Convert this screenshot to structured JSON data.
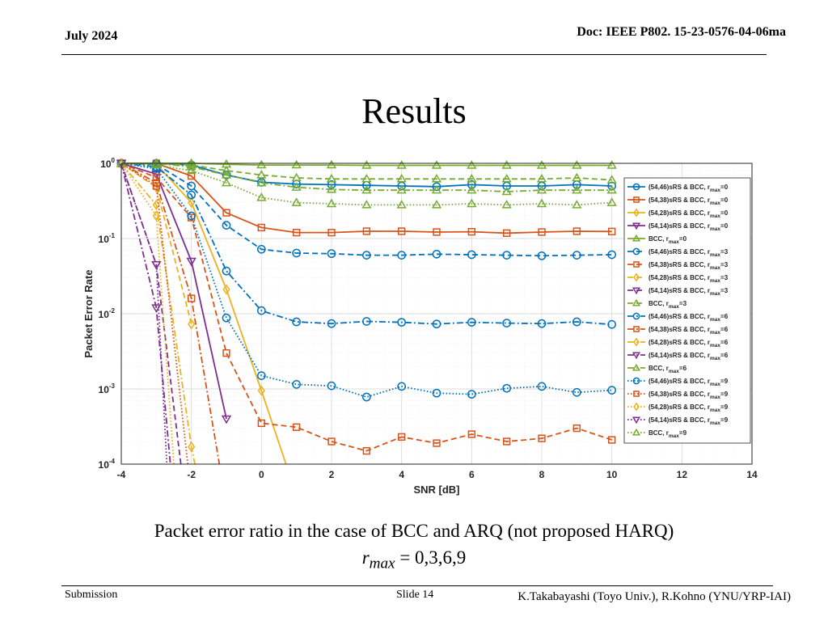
{
  "header": {
    "date": "July 2024",
    "doc_id": "Doc: IEEE P802. 15-23-0576-04-06ma"
  },
  "slide_title": "Results",
  "caption": "Packet error ratio in the case of BCC and ARQ (not proposed HARQ)",
  "formula": {
    "symbol": "r",
    "subscript": "max",
    "rest": " = 0,3,6,9"
  },
  "footer": {
    "left": "Submission",
    "middle": "Slide 14",
    "right": "K.Takabayashi (Toyo Univ.), R.Kohno (YNU/YRP-IAI)"
  },
  "colors": {
    "blue": "#0072BD",
    "orange": "#D95319",
    "yellow": "#EDB120",
    "purple": "#7E2F8E",
    "green": "#77AC30"
  },
  "chart_data": {
    "type": "line",
    "xlabel": "SNR [dB]",
    "ylabel": "Packet Error Rate",
    "xlim": [
      -4,
      14
    ],
    "xticks": [
      -4,
      -2,
      0,
      2,
      4,
      6,
      8,
      10,
      12,
      14
    ],
    "ylim": [
      0.0001,
      1
    ],
    "yscale": "log",
    "yticks": [
      {
        "value": 1,
        "mantissa": "10",
        "exp": "0"
      },
      {
        "value": 0.1,
        "mantissa": "10",
        "exp": "-1"
      },
      {
        "value": 0.01,
        "mantissa": "10",
        "exp": "-2"
      },
      {
        "value": 0.001,
        "mantissa": "10",
        "exp": "-3"
      },
      {
        "value": 0.0001,
        "mantissa": "10",
        "exp": "-4"
      }
    ],
    "grid": true,
    "legend_position": "right",
    "series": [
      {
        "name": "(54,46)sRS & BCC, r",
        "sub": "max",
        "suffix": "=0",
        "color": "blue",
        "line": "solid",
        "marker": "circle",
        "x": [
          -4,
          -3,
          -2,
          -1,
          0,
          1,
          2,
          3,
          4,
          5,
          6,
          7,
          8,
          9,
          10
        ],
        "y": [
          1,
          1,
          0.95,
          0.7,
          0.56,
          0.53,
          0.52,
          0.51,
          0.5,
          0.49,
          0.52,
          0.5,
          0.5,
          0.52,
          0.5
        ]
      },
      {
        "name": "(54,38)sRS & BCC, r",
        "sub": "max",
        "suffix": "=0",
        "color": "orange",
        "line": "solid",
        "marker": "square",
        "x": [
          -4,
          -3,
          -2,
          -1,
          0,
          1,
          2,
          3,
          4,
          5,
          6,
          7,
          8,
          9,
          10
        ],
        "y": [
          1,
          1,
          0.68,
          0.22,
          0.14,
          0.12,
          0.12,
          0.125,
          0.125,
          0.122,
          0.123,
          0.118,
          0.122,
          0.125,
          0.124
        ]
      },
      {
        "name": "(54,28)sRS & BCC, r",
        "sub": "max",
        "suffix": "=0",
        "color": "yellow",
        "line": "solid",
        "marker": "diamond",
        "x": [
          -4,
          -3,
          -2,
          -1,
          0,
          0.7
        ],
        "y": [
          1,
          0.98,
          0.3,
          0.021,
          0.00095,
          0.0001
        ]
      },
      {
        "name": "(54,14)sRS & BCC, r",
        "sub": "max",
        "suffix": "=0",
        "color": "purple",
        "line": "solid",
        "marker": "triangle-down",
        "x": [
          -4,
          -3,
          -2,
          -1
        ],
        "y": [
          1,
          0.72,
          0.05,
          0.0004
        ]
      },
      {
        "name": "BCC, r",
        "sub": "max",
        "suffix": "=0",
        "color": "green",
        "line": "solid",
        "marker": "triangle-up",
        "x": [
          -4,
          -3,
          -2,
          -1,
          0,
          1,
          2,
          3,
          4,
          5,
          6,
          7,
          8,
          9,
          10
        ],
        "y": [
          1,
          1,
          1,
          0.97,
          0.95,
          0.95,
          0.95,
          0.94,
          0.94,
          0.94,
          0.94,
          0.94,
          0.94,
          0.94,
          0.94
        ]
      },
      {
        "name": "(54,46)sRS & BCC, r",
        "sub": "max",
        "suffix": "=3",
        "color": "blue",
        "line": "dashed",
        "marker": "circle",
        "x": [
          -4,
          -3,
          -2,
          -1,
          0,
          1,
          2,
          3,
          4,
          5,
          6,
          7,
          8,
          9,
          10
        ],
        "y": [
          1,
          0.97,
          0.5,
          0.15,
          0.072,
          0.064,
          0.063,
          0.06,
          0.06,
          0.062,
          0.061,
          0.06,
          0.059,
          0.06,
          0.061
        ]
      },
      {
        "name": "(54,38)sRS & BCC, r",
        "sub": "max",
        "suffix": "=3",
        "color": "orange",
        "line": "dashed",
        "marker": "square",
        "x": [
          -4,
          -3,
          -2,
          -1,
          0,
          1,
          2,
          3,
          4,
          5,
          6,
          7,
          8,
          9,
          10
        ],
        "y": [
          1,
          0.65,
          0.19,
          0.003,
          0.00035,
          0.00031,
          0.0002,
          0.00015,
          0.00023,
          0.00019,
          0.00025,
          0.0002,
          0.00022,
          0.0003,
          0.00021
        ]
      },
      {
        "name": "(54,28)sRS & BCC, r",
        "sub": "max",
        "suffix": "=3",
        "color": "yellow",
        "line": "dashed",
        "marker": "diamond",
        "x": [
          -4,
          -3,
          -2
        ],
        "y": [
          1,
          0.48,
          0.0073
        ]
      },
      {
        "name": "(54,14)sRS & BCC, r",
        "sub": "max",
        "suffix": "=3",
        "color": "purple",
        "line": "dashed",
        "marker": "triangle-down",
        "x": [
          -4,
          -3,
          -2.3
        ],
        "y": [
          1,
          0.045,
          0.0001
        ]
      },
      {
        "name": "BCC, r",
        "sub": "max",
        "suffix": "=3",
        "color": "green",
        "line": "dashed",
        "marker": "triangle-up",
        "x": [
          -4,
          -3,
          -2,
          -1,
          0,
          1,
          2,
          3,
          4,
          5,
          6,
          7,
          8,
          9,
          10
        ],
        "y": [
          1,
          1,
          0.95,
          0.8,
          0.7,
          0.64,
          0.62,
          0.62,
          0.62,
          0.62,
          0.62,
          0.62,
          0.62,
          0.64,
          0.6
        ]
      },
      {
        "name": "(54,46)sRS & BCC, r",
        "sub": "max",
        "suffix": "=6",
        "color": "blue",
        "line": "dashdot",
        "marker": "circle",
        "x": [
          -4,
          -3,
          -2,
          -1,
          0,
          1,
          2,
          3,
          4,
          5,
          6,
          7,
          8,
          9,
          10
        ],
        "y": [
          1,
          0.9,
          0.38,
          0.037,
          0.011,
          0.0078,
          0.0074,
          0.0079,
          0.0077,
          0.0073,
          0.0077,
          0.0075,
          0.0074,
          0.0078,
          0.0072
        ]
      },
      {
        "name": "(54,38)sRS & BCC, r",
        "sub": "max",
        "suffix": "=6",
        "color": "orange",
        "line": "dashdot",
        "marker": "square",
        "x": [
          -4,
          -3,
          -2,
          -1.2
        ],
        "y": [
          1,
          0.55,
          0.016,
          0.0001
        ]
      },
      {
        "name": "(54,28)sRS & BCC, r",
        "sub": "max",
        "suffix": "=6",
        "color": "yellow",
        "line": "dashdot",
        "marker": "diamond",
        "x": [
          -4,
          -3,
          -2,
          -1.9
        ],
        "y": [
          1,
          0.28,
          0.00017,
          0.0001
        ]
      },
      {
        "name": "(54,14)sRS & BCC, r",
        "sub": "max",
        "suffix": "=6",
        "color": "purple",
        "line": "dashdot",
        "marker": "triangle-down",
        "x": [
          -4,
          -3,
          -2.6
        ],
        "y": [
          1,
          0.012,
          0.0001
        ]
      },
      {
        "name": "BCC, r",
        "sub": "max",
        "suffix": "=6",
        "color": "green",
        "line": "dashdot",
        "marker": "triangle-up",
        "x": [
          -4,
          -3,
          -2,
          -1,
          0,
          1,
          2,
          3,
          4,
          5,
          6,
          7,
          8,
          9,
          10
        ],
        "y": [
          1,
          1,
          0.9,
          0.7,
          0.55,
          0.48,
          0.45,
          0.44,
          0.44,
          0.44,
          0.44,
          0.42,
          0.44,
          0.44,
          0.44
        ]
      },
      {
        "name": "(54,46)sRS & BCC, r",
        "sub": "max",
        "suffix": "=9",
        "color": "blue",
        "line": "dotted",
        "marker": "circle",
        "x": [
          -4,
          -3,
          -2,
          -1,
          0,
          1,
          2,
          3,
          4,
          5,
          6,
          7,
          8,
          9,
          10
        ],
        "y": [
          1,
          0.85,
          0.2,
          0.0088,
          0.0015,
          0.00115,
          0.0011,
          0.00078,
          0.00108,
          0.00088,
          0.00085,
          0.00102,
          0.00108,
          0.0009,
          0.00096
        ]
      },
      {
        "name": "(54,38)sRS & BCC, r",
        "sub": "max",
        "suffix": "=9",
        "color": "orange",
        "line": "dotted",
        "marker": "square",
        "x": [
          -4,
          -3,
          -2.1
        ],
        "y": [
          1,
          0.5,
          0.0001
        ]
      },
      {
        "name": "(54,28)sRS & BCC, r",
        "sub": "max",
        "suffix": "=9",
        "color": "yellow",
        "line": "dotted",
        "marker": "diamond",
        "x": [
          -4,
          -3,
          -2.5
        ],
        "y": [
          1,
          0.2,
          0.0001
        ]
      },
      {
        "name": "(54,14)sRS & BCC, r",
        "sub": "max",
        "suffix": "=9",
        "color": "purple",
        "line": "dotted",
        "marker": "triangle-down",
        "x": [
          -4,
          -3,
          -2.7
        ],
        "y": [
          1,
          0.045,
          0.0001
        ]
      },
      {
        "name": "BCC, r",
        "sub": "max",
        "suffix": "=9",
        "color": "green",
        "line": "dotted",
        "marker": "triangle-up",
        "x": [
          -4,
          -3,
          -2,
          -1,
          0,
          1,
          2,
          3,
          4,
          5,
          6,
          7,
          8,
          9,
          10
        ],
        "y": [
          1,
          0.95,
          0.8,
          0.55,
          0.35,
          0.3,
          0.29,
          0.28,
          0.28,
          0.28,
          0.29,
          0.28,
          0.29,
          0.28,
          0.3
        ]
      }
    ]
  }
}
